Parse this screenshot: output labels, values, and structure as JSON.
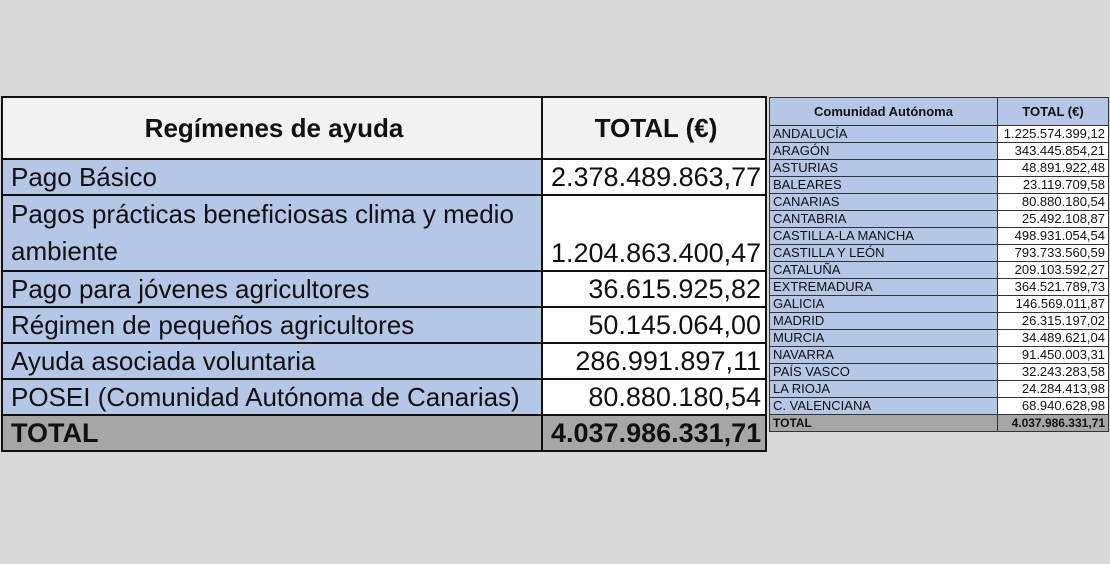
{
  "left_table": {
    "headers": [
      "Regímenes de ayuda",
      "TOTAL (€)"
    ],
    "rows": [
      {
        "label": "Pago Básico",
        "value": "2.378.489.863,77"
      },
      {
        "label": "Pagos prácticas beneficiosas clima y medio ambiente",
        "value": "1.204.863.400,47"
      },
      {
        "label": "Pago para jóvenes agricultores",
        "value": "36.615.925,82"
      },
      {
        "label": "Régimen de pequeños agricultores",
        "value": "50.145.064,00"
      },
      {
        "label": "Ayuda asociada voluntaria",
        "value": "286.991.897,11"
      },
      {
        "label": "POSEI (Comunidad Autónoma de Canarias)",
        "value": "80.880.180,54"
      }
    ],
    "total": {
      "label": "TOTAL",
      "value": "4.037.986.331,71"
    }
  },
  "right_table": {
    "headers": [
      "Comunidad Autónoma",
      "TOTAL (€)"
    ],
    "rows": [
      {
        "label": "ANDALUCÍA",
        "value": "1.225.574.399,12"
      },
      {
        "label": "ARAGÓN",
        "value": "343.445.854,21"
      },
      {
        "label": "ASTURIAS",
        "value": "48.891.922,48"
      },
      {
        "label": "BALEARES",
        "value": "23.119.709,58"
      },
      {
        "label": "CANARIAS",
        "value": "80.880.180,54"
      },
      {
        "label": "CANTABRIA",
        "value": "25.492.108,87"
      },
      {
        "label": "CASTILLA-LA MANCHA",
        "value": "498.931.054,54"
      },
      {
        "label": "CASTILLA Y LEÓN",
        "value": "793.733.560,59"
      },
      {
        "label": "CATALUÑA",
        "value": "209.103.592,27"
      },
      {
        "label": "EXTREMADURA",
        "value": "364.521.789,73"
      },
      {
        "label": "GALICIA",
        "value": "146.569.011,87"
      },
      {
        "label": "MADRID",
        "value": "26.315.197,02"
      },
      {
        "label": "MURCIA",
        "value": "34.489.621,04"
      },
      {
        "label": "NAVARRA",
        "value": "91.450.003,31"
      },
      {
        "label": "PAÍS VASCO",
        "value": "32.243.283,58"
      },
      {
        "label": "LA RIOJA",
        "value": "24.284.413,98"
      },
      {
        "label": "C. VALENCIANA",
        "value": "68.940.628,98"
      }
    ],
    "total": {
      "label": "TOTAL",
      "value": "4.037.986.331,71"
    }
  },
  "colors": {
    "background": "#d9d9d9",
    "label_cell": "#b4c7e7",
    "total_row": "#a6a6a6",
    "header_left": "#f2f2f2"
  }
}
